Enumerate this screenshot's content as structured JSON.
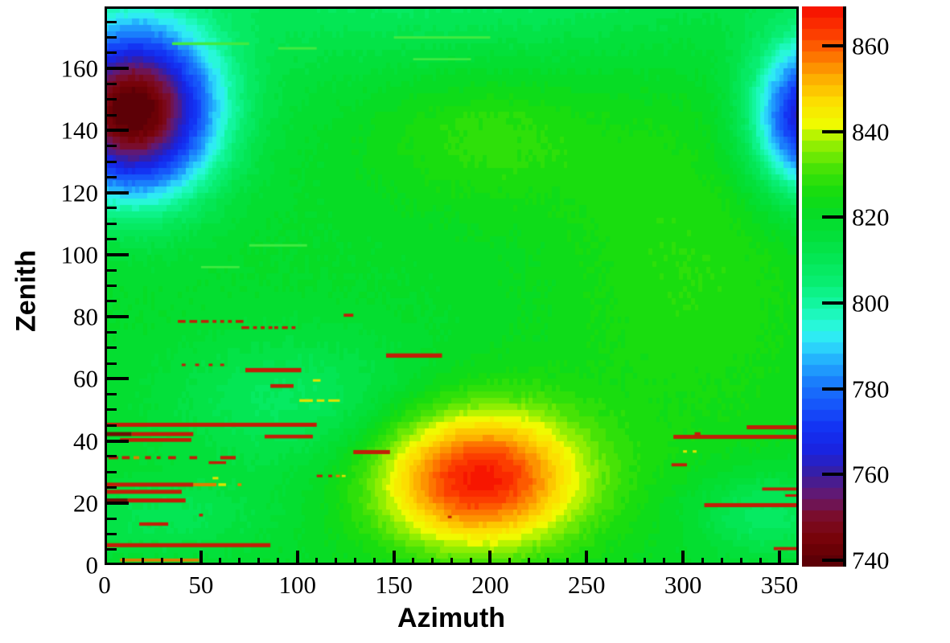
{
  "figure": {
    "background": "#ffffff",
    "frame_color": "#000000"
  },
  "chart_data": {
    "type": "heatmap",
    "title": "",
    "xlabel": "Azimuth",
    "ylabel": "Zenith",
    "x_range": [
      0,
      360
    ],
    "y_range": [
      0,
      180
    ],
    "z_range": [
      738.5,
      869.2
    ],
    "x_axis": {
      "major_ticks": [
        0,
        50,
        100,
        150,
        200,
        250,
        300,
        350
      ],
      "minor_step": 10
    },
    "y_axis": {
      "major_ticks": [
        0,
        20,
        40,
        60,
        80,
        100,
        120,
        140,
        160
      ],
      "minor_step": 5
    },
    "colorbar": {
      "ticks": [
        740,
        760,
        780,
        800,
        820,
        840,
        860
      ],
      "n_contours": 50,
      "position": "right"
    },
    "grid": false,
    "palette": [
      [
        0.0,
        [
          86,
          0,
          6
        ]
      ],
      [
        0.045,
        [
          118,
          2,
          6
        ]
      ],
      [
        0.085,
        [
          125,
          12,
          36
        ]
      ],
      [
        0.125,
        [
          102,
          24,
          110
        ]
      ],
      [
        0.165,
        [
          56,
          30,
          162
        ]
      ],
      [
        0.205,
        [
          26,
          34,
          222
        ]
      ],
      [
        0.245,
        [
          18,
          48,
          242
        ]
      ],
      [
        0.285,
        [
          22,
          82,
          250
        ]
      ],
      [
        0.33,
        [
          26,
          126,
          252
        ]
      ],
      [
        0.37,
        [
          36,
          180,
          253
        ]
      ],
      [
        0.405,
        [
          48,
          232,
          250
        ]
      ],
      [
        0.435,
        [
          38,
          250,
          210
        ]
      ],
      [
        0.47,
        [
          18,
          246,
          158
        ]
      ],
      [
        0.51,
        [
          8,
          237,
          112
        ]
      ],
      [
        0.55,
        [
          4,
          230,
          84
        ]
      ],
      [
        0.59,
        [
          3,
          224,
          58
        ]
      ],
      [
        0.625,
        [
          5,
          220,
          40
        ]
      ],
      [
        0.665,
        [
          20,
          220,
          16
        ]
      ],
      [
        0.705,
        [
          62,
          226,
          6
        ]
      ],
      [
        0.745,
        [
          132,
          237,
          2
        ]
      ],
      [
        0.775,
        [
          196,
          245,
          0
        ]
      ],
      [
        0.79,
        [
          240,
          250,
          0
        ]
      ],
      [
        0.83,
        [
          252,
          222,
          0
        ]
      ],
      [
        0.87,
        [
          253,
          176,
          0
        ]
      ],
      [
        0.91,
        [
          253,
          118,
          0
        ]
      ],
      [
        0.95,
        [
          252,
          62,
          0
        ]
      ],
      [
        1.0,
        [
          246,
          12,
          0
        ]
      ]
    ],
    "field": {
      "base": 820,
      "bin_deg": 2,
      "noise_amp": 1.8,
      "gaussians": [
        {
          "az": 15,
          "zen": 146,
          "saz": 30,
          "szen": 19,
          "amp": -82
        },
        {
          "az": 368,
          "zen": 144,
          "saz": 22,
          "szen": 17,
          "amp": -62
        },
        {
          "az": 194,
          "zen": 28,
          "saz": 38,
          "szen": 16,
          "amp": 48
        },
        {
          "az": 195,
          "zen": 140,
          "saz": 42,
          "szen": 16,
          "amp": 9
        },
        {
          "az": 190,
          "zen": 195,
          "saz": 160,
          "szen": 26,
          "amp": -14
        },
        {
          "az": 100,
          "zen": 52,
          "saz": 48,
          "szen": 16,
          "amp": -12
        },
        {
          "az": 342,
          "zen": 16,
          "saz": 26,
          "szen": 10,
          "amp": -14
        },
        {
          "az": 305,
          "zen": 100,
          "saz": 55,
          "szen": 55,
          "amp": 7
        },
        {
          "az": 30,
          "zen": 15,
          "saz": 40,
          "szen": 9,
          "amp": -9
        }
      ]
    },
    "streak_colors": {
      "R": "#c11f08",
      "O": "#d98200",
      "Y": "#dfe300",
      "G": "#41ea41",
      "D": "#6d1004"
    },
    "streaks": [
      [
        0,
        110,
        45.2,
        "R",
        1.3
      ],
      [
        0,
        14,
        42.2,
        "D",
        1.3
      ],
      [
        14,
        46,
        42.2,
        "R",
        1.3
      ],
      [
        8,
        45,
        40.3,
        "R",
        1.2
      ],
      [
        83,
        108,
        41.4,
        "R",
        1.2
      ],
      [
        129,
        148,
        36.4,
        "R",
        1.3
      ],
      [
        2,
        7,
        34.6,
        "R",
        1.0
      ],
      [
        9,
        13,
        34.6,
        "R",
        1.0
      ],
      [
        15,
        18,
        34.6,
        "O",
        1.0
      ],
      [
        21,
        24,
        34.6,
        "R",
        1.0
      ],
      [
        27,
        29,
        34.6,
        "R",
        0.9
      ],
      [
        33,
        37,
        34.6,
        "R",
        1.0
      ],
      [
        44,
        48,
        34.6,
        "R",
        1.0
      ],
      [
        60,
        68,
        34.6,
        "R",
        1.1
      ],
      [
        54,
        63,
        33.0,
        "R",
        0.9
      ],
      [
        0,
        46,
        25.9,
        "R",
        1.3
      ],
      [
        46,
        58,
        25.9,
        "O",
        1.1
      ],
      [
        59,
        63,
        25.9,
        "Y",
        0.9
      ],
      [
        69,
        71,
        25.9,
        "O",
        0.9
      ],
      [
        0,
        40,
        23.6,
        "R",
        1.3
      ],
      [
        0,
        12,
        20.8,
        "D",
        1.3
      ],
      [
        12,
        42,
        20.8,
        "R",
        1.3
      ],
      [
        49,
        51,
        16.1,
        "R",
        0.9
      ],
      [
        18,
        33,
        13.2,
        "R",
        1.1
      ],
      [
        0,
        86,
        6.4,
        "R",
        1.3
      ],
      [
        8,
        49,
        1.6,
        "O",
        1.0
      ],
      [
        124,
        129,
        80.5,
        "R",
        1.0
      ],
      [
        38,
        42,
        78.5,
        "R",
        0.9
      ],
      [
        44,
        48,
        78.5,
        "R",
        0.9
      ],
      [
        50,
        54,
        78.5,
        "R",
        0.9
      ],
      [
        56,
        58,
        78.5,
        "R",
        0.9
      ],
      [
        60,
        62,
        78.5,
        "R",
        0.9
      ],
      [
        64,
        66,
        78.5,
        "R",
        0.9
      ],
      [
        68,
        72,
        78.5,
        "R",
        0.9
      ],
      [
        71,
        75,
        76.5,
        "R",
        0.9
      ],
      [
        77,
        79,
        76.5,
        "R",
        0.9
      ],
      [
        81,
        83,
        76.5,
        "R",
        0.9
      ],
      [
        85,
        87,
        76.5,
        "R",
        0.9
      ],
      [
        88,
        90,
        76.5,
        "R",
        0.9
      ],
      [
        92,
        95,
        76.5,
        "R",
        0.9
      ],
      [
        97,
        99,
        76.5,
        "R",
        0.9
      ],
      [
        146,
        175,
        67.5,
        "R",
        1.4
      ],
      [
        73,
        102,
        62.8,
        "R",
        1.4
      ],
      [
        40,
        42,
        64.5,
        "R",
        0.8
      ],
      [
        47,
        49,
        64.5,
        "R",
        0.8
      ],
      [
        54,
        56,
        64.5,
        "R",
        0.8
      ],
      [
        60,
        62,
        64.5,
        "R",
        0.8
      ],
      [
        86,
        98,
        57.7,
        "R",
        1.2
      ],
      [
        101,
        108,
        53.0,
        "Y",
        0.9
      ],
      [
        110,
        114,
        53.0,
        "Y",
        0.8
      ],
      [
        116,
        122,
        53.0,
        "Y",
        0.8
      ],
      [
        108,
        112,
        59.5,
        "Y",
        0.8
      ],
      [
        110,
        113,
        28.7,
        "R",
        0.8
      ],
      [
        116,
        118,
        28.7,
        "R",
        0.8
      ],
      [
        120,
        122,
        28.7,
        "O",
        0.8
      ],
      [
        123,
        125,
        28.7,
        "Y",
        0.7
      ],
      [
        56,
        59,
        28.0,
        "Y",
        0.8
      ],
      [
        178,
        180,
        15.5,
        "R",
        0.8
      ],
      [
        333,
        360,
        44.4,
        "R",
        1.3
      ],
      [
        295,
        360,
        41.3,
        "R",
        1.3
      ],
      [
        306,
        309,
        42.3,
        "R",
        1.0
      ],
      [
        294,
        302,
        32.3,
        "R",
        1.0
      ],
      [
        341,
        359,
        24.5,
        "R",
        1.0
      ],
      [
        353,
        359,
        22.4,
        "R",
        0.8
      ],
      [
        311,
        360,
        19.3,
        "R",
        1.3
      ],
      [
        347,
        360,
        5.3,
        "R",
        1.0
      ],
      [
        300,
        302,
        36.6,
        "Y",
        0.8
      ],
      [
        305,
        307,
        36.6,
        "Y",
        0.8
      ],
      [
        35,
        75,
        168.0,
        "G",
        0.9
      ],
      [
        90,
        110,
        166.5,
        "G",
        0.8
      ],
      [
        150,
        200,
        170.0,
        "G",
        0.8
      ],
      [
        160,
        190,
        163.0,
        "G",
        0.7
      ],
      [
        75,
        105,
        103.0,
        "G",
        0.8
      ],
      [
        50,
        70,
        96.0,
        "G",
        0.7
      ]
    ]
  }
}
